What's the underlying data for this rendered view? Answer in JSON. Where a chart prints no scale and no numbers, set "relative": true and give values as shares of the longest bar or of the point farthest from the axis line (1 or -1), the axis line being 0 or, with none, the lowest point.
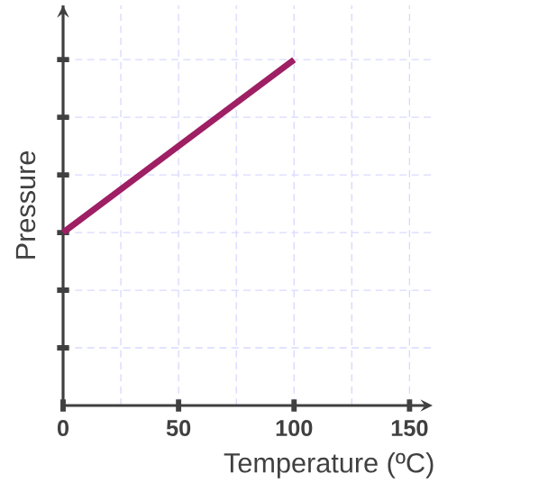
{
  "chart_data": {
    "type": "line",
    "xlabel": "Temperature (ºC)",
    "ylabel": "Pressure",
    "relative": true,
    "xlim": [
      0,
      160
    ],
    "xticks": [
      0,
      50,
      100,
      150
    ],
    "grid": true,
    "marker": "none",
    "line_style": "solid",
    "series": [
      {
        "color": "#9e1f63",
        "x": [
          0,
          100
        ],
        "values": [
          0.5,
          1
        ]
      }
    ]
  }
}
